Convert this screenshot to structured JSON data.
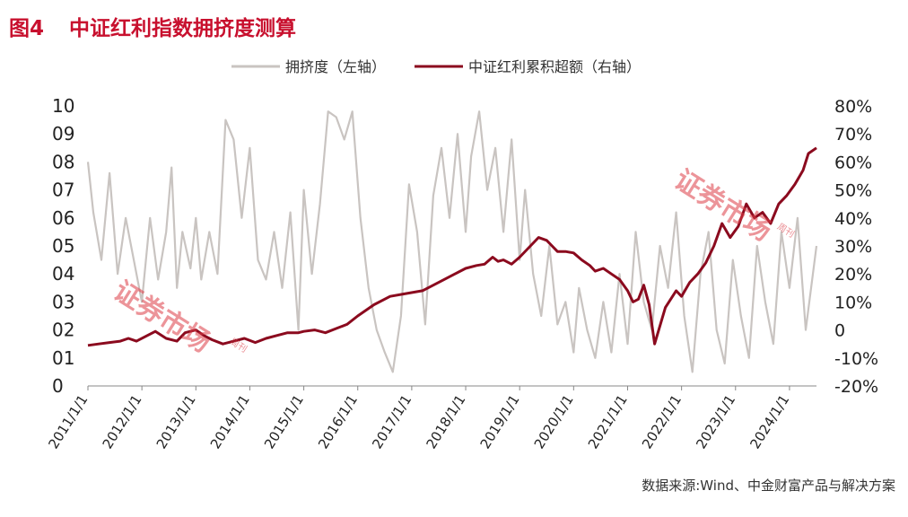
{
  "figure_label": "图4",
  "figure_title": "中证红利指数拥挤度测算",
  "source_text": "数据来源:Wind、中金财富产品与解决方案",
  "watermark": {
    "text": "证券市场",
    "sub": "周刊"
  },
  "colors": {
    "crowding": "#c9c4c1",
    "excess": "#8b0a1e",
    "title": "#c8102e"
  },
  "chart_data": {
    "type": "line",
    "title": "中证红利指数拥挤度测算",
    "legend_position": "top",
    "x_ticks": [
      "2011/1/1",
      "2012/1/1",
      "2013/1/1",
      "2014/1/1",
      "2015/1/1",
      "2016/1/1",
      "2017/1/1",
      "2018/1/1",
      "2019/1/1",
      "2020/1/1",
      "2021/1/1",
      "2022/1/1",
      "2023/1/1",
      "2024/1/1"
    ],
    "x_range": [
      2011.0,
      2024.5
    ],
    "left_axis": {
      "ticks": [
        "0",
        "01",
        "02",
        "03",
        "04",
        "05",
        "06",
        "07",
        "08",
        "09",
        "10"
      ],
      "ylim": [
        0,
        1
      ]
    },
    "right_axis": {
      "ticks": [
        "-20%",
        "-10%",
        "0",
        "10%",
        "20%",
        "30%",
        "40%",
        "50%",
        "60%",
        "70%",
        "80%"
      ],
      "ylim": [
        -20,
        80
      ]
    },
    "series": [
      {
        "name": "拥挤度（左轴）",
        "axis": "left",
        "x": [
          2011.0,
          2011.1,
          2011.25,
          2011.4,
          2011.55,
          2011.7,
          2011.85,
          2012.0,
          2012.15,
          2012.3,
          2012.45,
          2012.55,
          2012.65,
          2012.75,
          2012.9,
          2013.0,
          2013.1,
          2013.25,
          2013.4,
          2013.55,
          2013.7,
          2013.85,
          2014.0,
          2014.15,
          2014.3,
          2014.45,
          2014.6,
          2014.75,
          2014.9,
          2015.0,
          2015.15,
          2015.3,
          2015.45,
          2015.6,
          2015.75,
          2015.9,
          2016.05,
          2016.2,
          2016.35,
          2016.5,
          2016.65,
          2016.8,
          2016.95,
          2017.1,
          2017.25,
          2017.4,
          2017.55,
          2017.7,
          2017.85,
          2018.0,
          2018.1,
          2018.25,
          2018.4,
          2018.55,
          2018.7,
          2018.85,
          2019.0,
          2019.1,
          2019.25,
          2019.4,
          2019.55,
          2019.7,
          2019.85,
          2020.0,
          2020.1,
          2020.25,
          2020.4,
          2020.55,
          2020.7,
          2020.85,
          2021.0,
          2021.15,
          2021.3,
          2021.45,
          2021.6,
          2021.75,
          2021.9,
          2022.05,
          2022.2,
          2022.35,
          2022.5,
          2022.65,
          2022.8,
          2022.95,
          2023.1,
          2023.25,
          2023.4,
          2023.55,
          2023.7,
          2023.85,
          2024.0,
          2024.15,
          2024.3,
          2024.5
        ],
        "values": [
          0.8,
          0.62,
          0.45,
          0.76,
          0.4,
          0.6,
          0.45,
          0.3,
          0.6,
          0.38,
          0.55,
          0.78,
          0.35,
          0.55,
          0.42,
          0.6,
          0.38,
          0.55,
          0.4,
          0.95,
          0.88,
          0.6,
          0.85,
          0.45,
          0.38,
          0.55,
          0.35,
          0.62,
          0.2,
          0.7,
          0.4,
          0.65,
          0.98,
          0.96,
          0.88,
          0.98,
          0.6,
          0.35,
          0.2,
          0.12,
          0.05,
          0.25,
          0.72,
          0.55,
          0.22,
          0.68,
          0.85,
          0.6,
          0.9,
          0.55,
          0.82,
          0.98,
          0.7,
          0.85,
          0.55,
          0.88,
          0.45,
          0.7,
          0.4,
          0.25,
          0.5,
          0.22,
          0.3,
          0.12,
          0.35,
          0.2,
          0.1,
          0.3,
          0.12,
          0.4,
          0.15,
          0.55,
          0.3,
          0.2,
          0.5,
          0.35,
          0.62,
          0.25,
          0.05,
          0.4,
          0.55,
          0.2,
          0.08,
          0.45,
          0.25,
          0.1,
          0.5,
          0.3,
          0.15,
          0.55,
          0.35,
          0.6,
          0.2,
          0.5
        ]
      },
      {
        "name": "中证红利累积超额（右轴）",
        "axis": "right",
        "x": [
          2011.0,
          2011.2,
          2011.4,
          2011.6,
          2011.75,
          2011.9,
          2012.1,
          2012.25,
          2012.45,
          2012.65,
          2012.8,
          2013.0,
          2013.15,
          2013.3,
          2013.5,
          2013.7,
          2013.9,
          2014.1,
          2014.3,
          2014.5,
          2014.7,
          2014.9,
          2015.0,
          2015.2,
          2015.4,
          2015.6,
          2015.8,
          2016.0,
          2016.3,
          2016.6,
          2016.9,
          2017.2,
          2017.5,
          2017.8,
          2018.0,
          2018.2,
          2018.35,
          2018.5,
          2018.6,
          2018.7,
          2018.85,
          2019.0,
          2019.2,
          2019.35,
          2019.5,
          2019.6,
          2019.7,
          2019.85,
          2020.0,
          2020.15,
          2020.3,
          2020.4,
          2020.55,
          2020.7,
          2020.85,
          2021.0,
          2021.1,
          2021.2,
          2021.3,
          2021.4,
          2021.5,
          2021.7,
          2021.9,
          2022.0,
          2022.15,
          2022.3,
          2022.45,
          2022.6,
          2022.75,
          2022.9,
          2023.05,
          2023.2,
          2023.35,
          2023.5,
          2023.65,
          2023.8,
          2023.95,
          2024.1,
          2024.25,
          2024.35,
          2024.5
        ],
        "values": [
          -5.5,
          -5,
          -4.5,
          -4,
          -3,
          -4,
          -2,
          -0.5,
          -3,
          -4,
          -1,
          0,
          -2,
          -3.5,
          -5,
          -4,
          -3,
          -4.5,
          -3,
          -2,
          -1,
          -1,
          -0.5,
          0,
          -1,
          0.5,
          2,
          5,
          9,
          12,
          13,
          14,
          17,
          20,
          22,
          23,
          23.5,
          26,
          24.5,
          25,
          23.5,
          26,
          30,
          33,
          32,
          30,
          28,
          28,
          27.5,
          25,
          23,
          21,
          22,
          20,
          18,
          14,
          10,
          11,
          16,
          9,
          -5,
          8,
          14,
          12,
          17,
          20,
          24,
          30,
          38,
          33,
          37,
          45,
          40,
          42,
          38,
          45,
          48,
          52,
          57,
          63,
          65
        ]
      }
    ]
  }
}
